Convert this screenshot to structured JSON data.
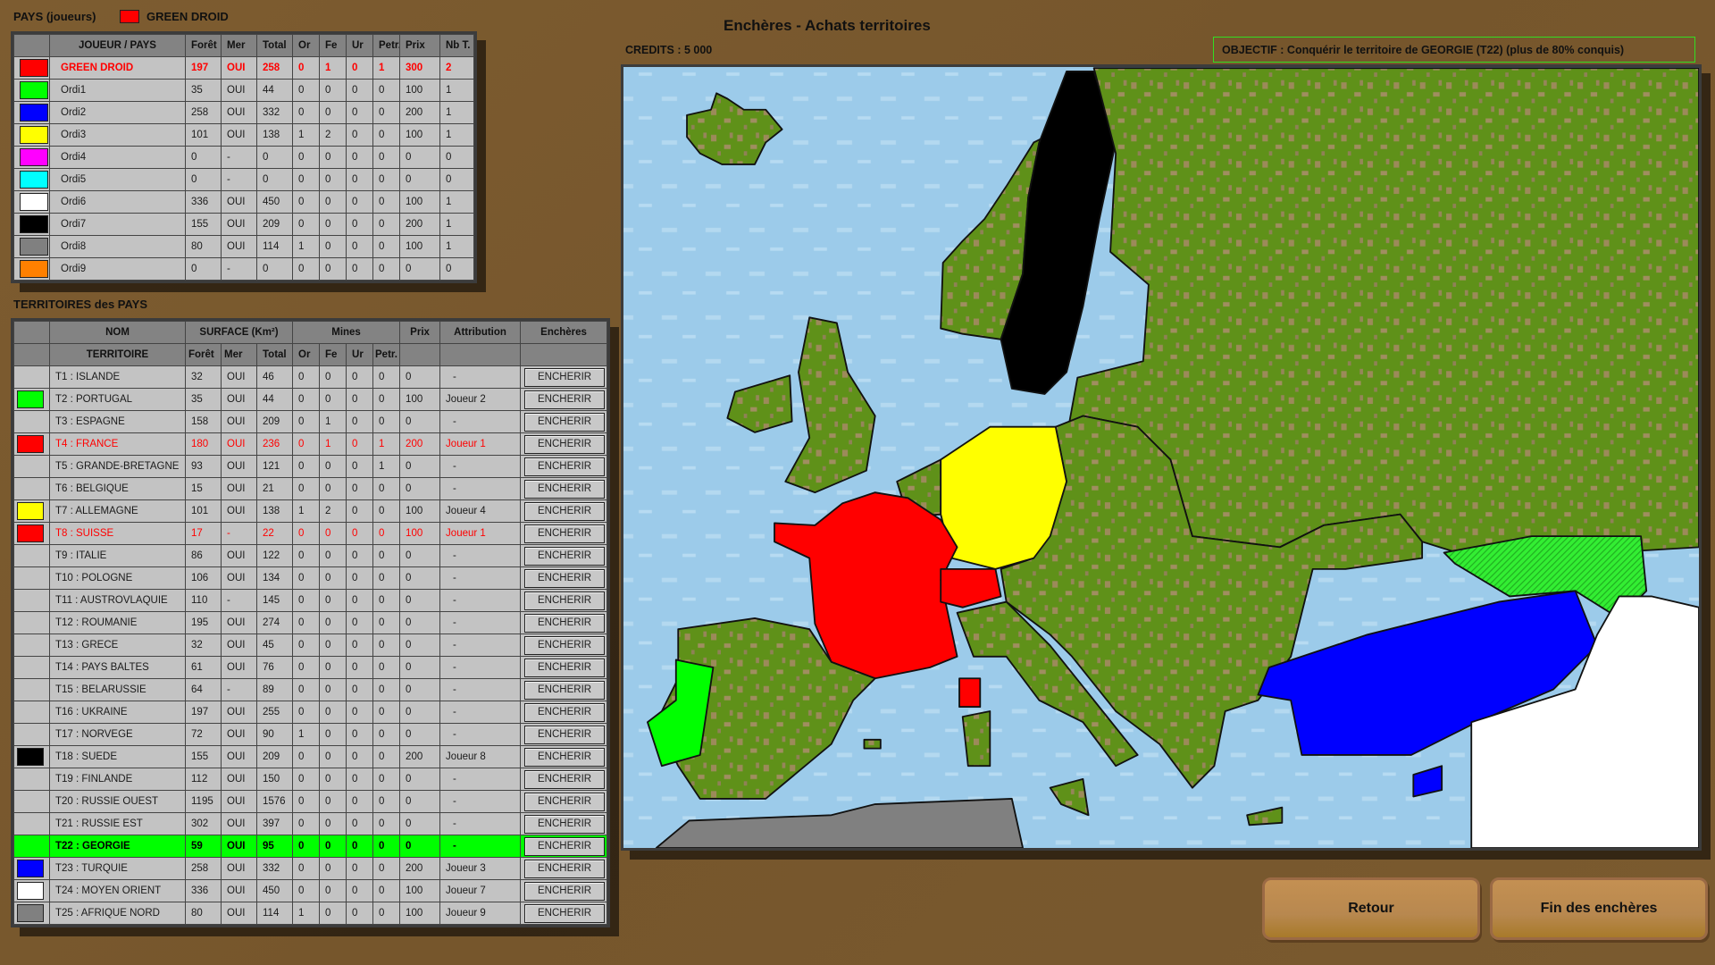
{
  "title": "Enchères - Achats territoires",
  "credits": "CREDITS : 5 000",
  "objective": "OBJECTIF : Conquérir le territoire de GEORGIE (T22) (plus de 80% conquis)",
  "players_section": {
    "label": "PAYS (joueurs)",
    "current_player": "GREEN DROID",
    "current_color": "#ff0000",
    "headers": [
      "JOUEUR / PAYS",
      "Forêt",
      "Mer",
      "Total",
      "Or",
      "Fe",
      "Ur",
      "Petr.",
      "Prix",
      "Nb T."
    ],
    "rows": [
      {
        "color": "#ff0000",
        "name": "GREEN DROID",
        "foret": "197",
        "mer": "OUI",
        "total": "258",
        "or": "0",
        "fe": "1",
        "ur": "0",
        "petr": "1",
        "prix": "300",
        "nb": "2",
        "style": "player bold"
      },
      {
        "color": "#00ff00",
        "name": "Ordi1",
        "foret": "35",
        "mer": "OUI",
        "total": "44",
        "or": "0",
        "fe": "0",
        "ur": "0",
        "petr": "0",
        "prix": "100",
        "nb": "1"
      },
      {
        "color": "#0000ff",
        "name": "Ordi2",
        "foret": "258",
        "mer": "OUI",
        "total": "332",
        "or": "0",
        "fe": "0",
        "ur": "0",
        "petr": "0",
        "prix": "200",
        "nb": "1"
      },
      {
        "color": "#ffff00",
        "name": "Ordi3",
        "foret": "101",
        "mer": "OUI",
        "total": "138",
        "or": "1",
        "fe": "2",
        "ur": "0",
        "petr": "0",
        "prix": "100",
        "nb": "1"
      },
      {
        "color": "#ff00ff",
        "name": "Ordi4",
        "foret": "0",
        "mer": "-",
        "total": "0",
        "or": "0",
        "fe": "0",
        "ur": "0",
        "petr": "0",
        "prix": "0",
        "nb": "0"
      },
      {
        "color": "#00ffff",
        "name": "Ordi5",
        "foret": "0",
        "mer": "-",
        "total": "0",
        "or": "0",
        "fe": "0",
        "ur": "0",
        "petr": "0",
        "prix": "0",
        "nb": "0"
      },
      {
        "color": "#ffffff",
        "name": "Ordi6",
        "foret": "336",
        "mer": "OUI",
        "total": "450",
        "or": "0",
        "fe": "0",
        "ur": "0",
        "petr": "0",
        "prix": "100",
        "nb": "1"
      },
      {
        "color": "#000000",
        "name": "Ordi7",
        "foret": "155",
        "mer": "OUI",
        "total": "209",
        "or": "0",
        "fe": "0",
        "ur": "0",
        "petr": "0",
        "prix": "200",
        "nb": "1"
      },
      {
        "color": "#808080",
        "name": "Ordi8",
        "foret": "80",
        "mer": "OUI",
        "total": "114",
        "or": "1",
        "fe": "0",
        "ur": "0",
        "petr": "0",
        "prix": "100",
        "nb": "1"
      },
      {
        "color": "#ff8000",
        "name": "Ordi9",
        "foret": "0",
        "mer": "-",
        "total": "0",
        "or": "0",
        "fe": "0",
        "ur": "0",
        "petr": "0",
        "prix": "0",
        "nb": "0"
      }
    ]
  },
  "territories_section": {
    "label": "TERRITOIRES des PAYS",
    "group_headers": [
      "NOM",
      "SURFACE (Km²)",
      "Mines",
      "Prix",
      "Attribution",
      "Enchères"
    ],
    "sub_headers": [
      "TERRITOIRE",
      "Forêt",
      "Mer",
      "Total",
      "Or",
      "Fe",
      "Ur",
      "Petr."
    ],
    "bid_label": "ENCHERIR",
    "rows": [
      {
        "color": "",
        "name": "T1 : ISLANDE",
        "foret": "32",
        "mer": "OUI",
        "total": "46",
        "or": "0",
        "fe": "0",
        "ur": "0",
        "petr": "0",
        "prix": "0",
        "attr": "-"
      },
      {
        "color": "#00ff00",
        "name": "T2 : PORTUGAL",
        "foret": "35",
        "mer": "OUI",
        "total": "44",
        "or": "0",
        "fe": "0",
        "ur": "0",
        "petr": "0",
        "prix": "100",
        "attr": "Joueur 2"
      },
      {
        "color": "",
        "name": "T3 : ESPAGNE",
        "foret": "158",
        "mer": "OUI",
        "total": "209",
        "or": "0",
        "fe": "1",
        "ur": "0",
        "petr": "0",
        "prix": "0",
        "attr": "-"
      },
      {
        "color": "#ff0000",
        "name": "T4 : FRANCE",
        "foret": "180",
        "mer": "OUI",
        "total": "236",
        "or": "0",
        "fe": "1",
        "ur": "0",
        "petr": "1",
        "prix": "200",
        "attr": "Joueur 1",
        "style": "player"
      },
      {
        "color": "",
        "name": "T5 : GRANDE-BRETAGNE",
        "foret": "93",
        "mer": "OUI",
        "total": "121",
        "or": "0",
        "fe": "0",
        "ur": "0",
        "petr": "1",
        "prix": "0",
        "attr": "-"
      },
      {
        "color": "",
        "name": "T6 : BELGIQUE",
        "foret": "15",
        "mer": "OUI",
        "total": "21",
        "or": "0",
        "fe": "0",
        "ur": "0",
        "petr": "0",
        "prix": "0",
        "attr": "-"
      },
      {
        "color": "#ffff00",
        "name": "T7 : ALLEMAGNE",
        "foret": "101",
        "mer": "OUI",
        "total": "138",
        "or": "1",
        "fe": "2",
        "ur": "0",
        "petr": "0",
        "prix": "100",
        "attr": "Joueur 4"
      },
      {
        "color": "#ff0000",
        "name": "T8 : SUISSE",
        "foret": "17",
        "mer": "-",
        "total": "22",
        "or": "0",
        "fe": "0",
        "ur": "0",
        "petr": "0",
        "prix": "100",
        "attr": "Joueur 1",
        "style": "player"
      },
      {
        "color": "",
        "name": "T9 : ITALIE",
        "foret": "86",
        "mer": "OUI",
        "total": "122",
        "or": "0",
        "fe": "0",
        "ur": "0",
        "petr": "0",
        "prix": "0",
        "attr": "-"
      },
      {
        "color": "",
        "name": "T10 : POLOGNE",
        "foret": "106",
        "mer": "OUI",
        "total": "134",
        "or": "0",
        "fe": "0",
        "ur": "0",
        "petr": "0",
        "prix": "0",
        "attr": "-"
      },
      {
        "color": "",
        "name": "T11 : AUSTROVLAQUIE",
        "foret": "110",
        "mer": "-",
        "total": "145",
        "or": "0",
        "fe": "0",
        "ur": "0",
        "petr": "0",
        "prix": "0",
        "attr": "-"
      },
      {
        "color": "",
        "name": "T12 : ROUMANIE",
        "foret": "195",
        "mer": "OUI",
        "total": "274",
        "or": "0",
        "fe": "0",
        "ur": "0",
        "petr": "0",
        "prix": "0",
        "attr": "-"
      },
      {
        "color": "",
        "name": "T13 : GRECE",
        "foret": "32",
        "mer": "OUI",
        "total": "45",
        "or": "0",
        "fe": "0",
        "ur": "0",
        "petr": "0",
        "prix": "0",
        "attr": "-"
      },
      {
        "color": "",
        "name": "T14 : PAYS BALTES",
        "foret": "61",
        "mer": "OUI",
        "total": "76",
        "or": "0",
        "fe": "0",
        "ur": "0",
        "petr": "0",
        "prix": "0",
        "attr": "-"
      },
      {
        "color": "",
        "name": "T15 : BELARUSSIE",
        "foret": "64",
        "mer": "-",
        "total": "89",
        "or": "0",
        "fe": "0",
        "ur": "0",
        "petr": "0",
        "prix": "0",
        "attr": "-"
      },
      {
        "color": "",
        "name": "T16 : UKRAINE",
        "foret": "197",
        "mer": "OUI",
        "total": "255",
        "or": "0",
        "fe": "0",
        "ur": "0",
        "petr": "0",
        "prix": "0",
        "attr": "-"
      },
      {
        "color": "",
        "name": "T17 : NORVEGE",
        "foret": "72",
        "mer": "OUI",
        "total": "90",
        "or": "1",
        "fe": "0",
        "ur": "0",
        "petr": "0",
        "prix": "0",
        "attr": "-"
      },
      {
        "color": "#000000",
        "name": "T18 : SUEDE",
        "foret": "155",
        "mer": "OUI",
        "total": "209",
        "or": "0",
        "fe": "0",
        "ur": "0",
        "petr": "0",
        "prix": "200",
        "attr": "Joueur 8"
      },
      {
        "color": "",
        "name": "T19 : FINLANDE",
        "foret": "112",
        "mer": "OUI",
        "total": "150",
        "or": "0",
        "fe": "0",
        "ur": "0",
        "petr": "0",
        "prix": "0",
        "attr": "-"
      },
      {
        "color": "",
        "name": "T20 : RUSSIE OUEST",
        "foret": "1195",
        "mer": "OUI",
        "total": "1576",
        "or": "0",
        "fe": "0",
        "ur": "0",
        "petr": "0",
        "prix": "0",
        "attr": "-"
      },
      {
        "color": "",
        "name": "T21 : RUSSIE EST",
        "foret": "302",
        "mer": "OUI",
        "total": "397",
        "or": "0",
        "fe": "0",
        "ur": "0",
        "petr": "0",
        "prix": "0",
        "attr": "-"
      },
      {
        "color": "",
        "name": "T22 : GEORGIE",
        "foret": "59",
        "mer": "OUI",
        "total": "95",
        "or": "0",
        "fe": "0",
        "ur": "0",
        "petr": "0",
        "prix": "0",
        "attr": "-",
        "style": "objective"
      },
      {
        "color": "#0000ff",
        "name": "T23 : TURQUIE",
        "foret": "258",
        "mer": "OUI",
        "total": "332",
        "or": "0",
        "fe": "0",
        "ur": "0",
        "petr": "0",
        "prix": "200",
        "attr": "Joueur 3"
      },
      {
        "color": "#ffffff",
        "name": "T24 : MOYEN ORIENT",
        "foret": "336",
        "mer": "OUI",
        "total": "450",
        "or": "0",
        "fe": "0",
        "ur": "0",
        "petr": "0",
        "prix": "100",
        "attr": "Joueur 7"
      },
      {
        "color": "#808080",
        "name": "T25 : AFRIQUE NORD",
        "foret": "80",
        "mer": "OUI",
        "total": "114",
        "or": "1",
        "fe": "0",
        "ur": "0",
        "petr": "0",
        "prix": "100",
        "attr": "Joueur 9"
      }
    ]
  },
  "map": {
    "sea_color": "#9ccbea",
    "land_color": "#5f9119",
    "territory_colors": {
      "france": "#ff0000",
      "suisse": "#ff0000",
      "corse": "#ff0000",
      "allemagne": "#ffff00",
      "suede": "#000000",
      "portugal": "#00ff00",
      "georgie": "#33ee33",
      "turquie": "#0000ff",
      "moyen_orient": "#ffffff",
      "afrique_nord": "#808080"
    }
  },
  "buttons": {
    "back": "Retour",
    "end": "Fin des enchères"
  }
}
